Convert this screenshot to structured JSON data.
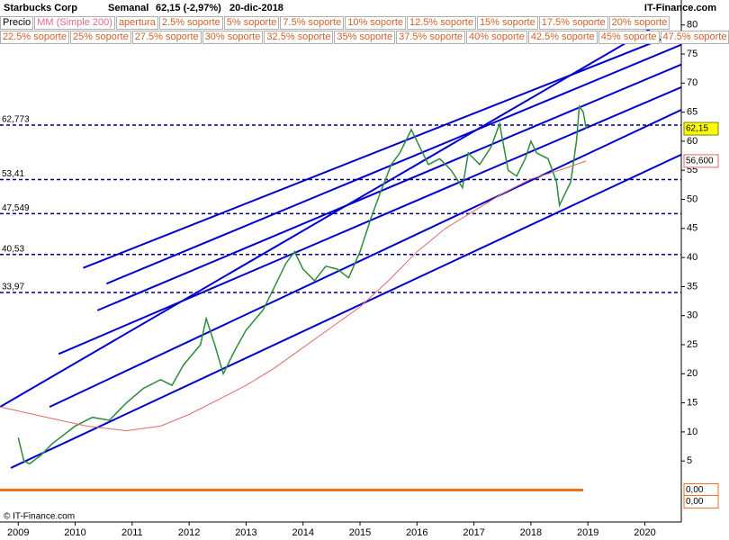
{
  "chart_data": {
    "type": "line",
    "title": "Starbucks Corp",
    "subtitle": [
      "Semanal",
      "62,15 (-2,97%)",
      "20-dic-2018"
    ],
    "brand": "IT-Finance.com",
    "copyright": "© IT-Finance.com",
    "legend_rows": [
      [
        {
          "name": "Precio",
          "color": "#000000"
        },
        {
          "name": "MM (Simple 200)",
          "color": "#e06a80"
        },
        {
          "name": "apertura",
          "color": "#d0602a"
        },
        {
          "name": "2.5% soporte",
          "color": "#d0602a"
        },
        {
          "name": "5% soporte",
          "color": "#d0602a"
        },
        {
          "name": "7.5% soporte",
          "color": "#d0602a"
        },
        {
          "name": "10% soporte",
          "color": "#d0602a"
        },
        {
          "name": "12.5% soporte",
          "color": "#d0602a"
        },
        {
          "name": "15% soporte",
          "color": "#d0602a"
        },
        {
          "name": "17.5% soporte",
          "color": "#d0602a"
        },
        {
          "name": "20% soporte",
          "color": "#d0602a"
        }
      ],
      [
        {
          "name": "22.5% soporte",
          "color": "#d0602a"
        },
        {
          "name": "25% soporte",
          "color": "#d0602a"
        },
        {
          "name": "27.5% soporte",
          "color": "#d0602a"
        },
        {
          "name": "30% soporte",
          "color": "#d0602a"
        },
        {
          "name": "32.5% soporte",
          "color": "#d0602a"
        },
        {
          "name": "35% soporte",
          "color": "#d0602a"
        },
        {
          "name": "37.5% soporte",
          "color": "#d0602a"
        },
        {
          "name": "40% soporte",
          "color": "#d0602a"
        },
        {
          "name": "42.5% soporte",
          "color": "#d0602a"
        },
        {
          "name": "45% soporte",
          "color": "#d0602a"
        },
        {
          "name": "47.5% soporte",
          "color": "#d0602a"
        }
      ]
    ],
    "xlim": [
      2008.68,
      2020.64
    ],
    "ylim": [
      -5.5,
      81.2
    ],
    "xticks": [
      2009,
      2010,
      2011,
      2012,
      2013,
      2014,
      2015,
      2016,
      2017,
      2018,
      2019,
      2020
    ],
    "yticks": [
      5,
      10,
      15,
      20,
      25,
      30,
      35,
      40,
      45,
      50,
      55,
      60,
      65,
      70,
      75,
      80
    ],
    "series": [
      {
        "name": "Precio",
        "color": "#2e8b3a",
        "x": [
          2009.0,
          2009.1,
          2009.2,
          2009.4,
          2009.6,
          2009.8,
          2010.0,
          2010.3,
          2010.6,
          2010.9,
          2011.2,
          2011.5,
          2011.7,
          2011.9,
          2012.2,
          2012.3,
          2012.45,
          2012.6,
          2012.8,
          2013.0,
          2013.3,
          2013.5,
          2013.7,
          2013.85,
          2014.0,
          2014.2,
          2014.4,
          2014.6,
          2014.8,
          2015.0,
          2015.2,
          2015.35,
          2015.55,
          2015.7,
          2015.9,
          2016.0,
          2016.2,
          2016.4,
          2016.6,
          2016.8,
          2016.9,
          2017.1,
          2017.3,
          2017.45,
          2017.6,
          2017.75,
          2017.9,
          2018.0,
          2018.1,
          2018.3,
          2018.45,
          2018.5,
          2018.6,
          2018.7,
          2018.8,
          2018.85,
          2018.92,
          2018.97
        ],
        "values": [
          9,
          5,
          4.5,
          6,
          8,
          9.5,
          11,
          12.5,
          12,
          15,
          17.5,
          19,
          18,
          21.5,
          25,
          29.5,
          25,
          20,
          24,
          27.5,
          31,
          35,
          39,
          41,
          38,
          36,
          38.5,
          38,
          36.5,
          41,
          47,
          51,
          56,
          58,
          62,
          60,
          56,
          57,
          55,
          52,
          58,
          56,
          59,
          63,
          55,
          54,
          57,
          60,
          58,
          57,
          53,
          49,
          51,
          53,
          60,
          66,
          65,
          62.15
        ]
      },
      {
        "name": "MM (Simple 200)",
        "color": "#e06a6a",
        "x": [
          2008.68,
          2009.5,
          2010.2,
          2010.9,
          2011.5,
          2012.0,
          2012.5,
          2013.0,
          2013.5,
          2014.0,
          2014.5,
          2015.0,
          2015.5,
          2016.0,
          2016.5,
          2017.0,
          2017.5,
          2018.0,
          2018.5,
          2018.97
        ],
        "values": [
          14.3,
          12.5,
          11,
          10.2,
          11,
          13,
          15.5,
          18,
          21,
          24.5,
          28,
          31.5,
          36,
          41,
          45,
          48,
          51,
          53.5,
          55,
          56.6
        ]
      }
    ],
    "channels_color": "#0000cc",
    "channels": [
      {
        "x": [
          2008.68,
          2020.37
        ],
        "y": [
          14.3,
          80.9
        ]
      },
      {
        "x": [
          2010.14,
          2020.64
        ],
        "y": [
          38.2,
          78.9
        ]
      },
      {
        "x": [
          2010.55,
          2020.64
        ],
        "y": [
          35.5,
          76.6
        ]
      },
      {
        "x": [
          2010.39,
          2020.64
        ],
        "y": [
          30.9,
          73.2
        ]
      },
      {
        "x": [
          2009.71,
          2020.64
        ],
        "y": [
          23.4,
          69.3
        ]
      },
      {
        "x": [
          2009.55,
          2020.64
        ],
        "y": [
          14.3,
          65.4
        ]
      },
      {
        "x": [
          2008.87,
          2020.64
        ],
        "y": [
          3.8,
          57.7
        ]
      }
    ],
    "levels_color": "#000080",
    "levels": [
      {
        "value": 62.773,
        "label": "62,773"
      },
      {
        "value": 53.41,
        "label": "53,41"
      },
      {
        "value": 47.549,
        "label": "47,549"
      },
      {
        "value": 40.53,
        "label": "40,53"
      },
      {
        "value": 33.97,
        "label": "33,97"
      }
    ],
    "zero_line": {
      "x": [
        2008.68,
        2018.92
      ],
      "y": [
        0,
        0
      ],
      "color": "#f07020"
    },
    "markers": [
      {
        "value": 62.15,
        "label": "62,15",
        "bg": "#ffff00",
        "border": "#808000"
      },
      {
        "value": 56.6,
        "label": "56,600",
        "bg": "#ffffff",
        "border": "#e06a6a"
      },
      {
        "value": 0,
        "label": "0,00",
        "bg": "#ffffff",
        "border": "#f07020"
      },
      {
        "value": 0,
        "label": "0,00",
        "bg": "#ffffff",
        "border": "#f07020"
      }
    ]
  }
}
